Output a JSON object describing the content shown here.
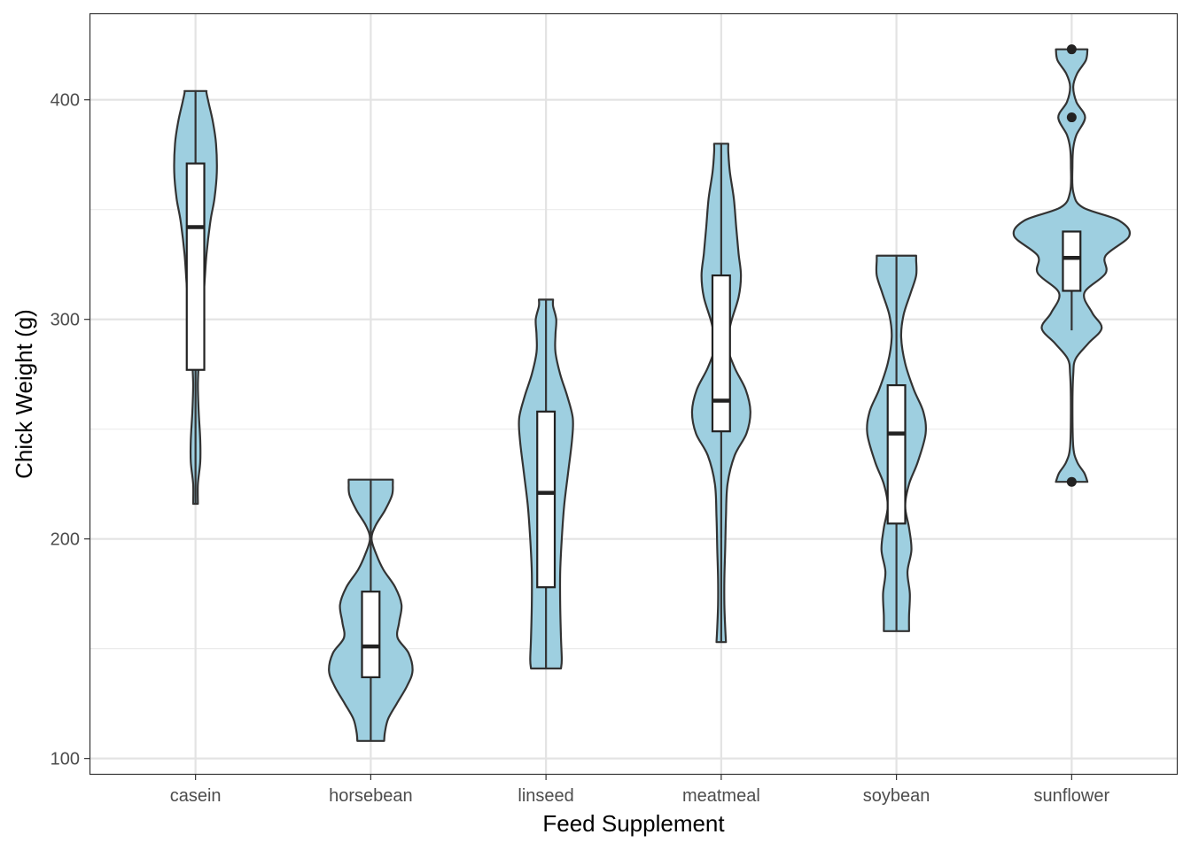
{
  "chart_data": {
    "type": "violin",
    "xlabel": "Feed Supplement",
    "ylabel": "Chick Weight (g)",
    "ylim": [
      93,
      439
    ],
    "yticks": [
      100,
      200,
      300,
      400
    ],
    "y_minor_gridlines": [
      150,
      250,
      350
    ],
    "grid": true,
    "fill_color": "#9ecfe0",
    "outline_color": "#333333",
    "box_fill": "#ffffff",
    "categories": [
      "casein",
      "horsebean",
      "linseed",
      "meatmeal",
      "soybean",
      "sunflower"
    ],
    "groups": [
      {
        "name": "casein",
        "violin": [
          [
            216,
            0.03
          ],
          [
            225,
            0.03
          ],
          [
            235,
            0.06
          ],
          [
            245,
            0.06
          ],
          [
            258,
            0.04
          ],
          [
            270,
            0.03
          ],
          [
            280,
            0.04
          ],
          [
            290,
            0.05
          ],
          [
            300,
            0.07
          ],
          [
            315,
            0.11
          ],
          [
            330,
            0.14
          ],
          [
            345,
            0.19
          ],
          [
            355,
            0.24
          ],
          [
            367,
            0.27
          ],
          [
            380,
            0.26
          ],
          [
            390,
            0.22
          ],
          [
            398,
            0.17
          ],
          [
            403,
            0.14
          ],
          [
            404,
            0.14
          ]
        ],
        "box": {
          "min": 216,
          "q1": 277,
          "median": 342,
          "q3": 371,
          "max": 404
        },
        "outliers": []
      },
      {
        "name": "horsebean",
        "violin": [
          [
            108,
            0.17
          ],
          [
            112,
            0.18
          ],
          [
            118,
            0.22
          ],
          [
            125,
            0.33
          ],
          [
            133,
            0.46
          ],
          [
            140,
            0.53
          ],
          [
            148,
            0.48
          ],
          [
            155,
            0.34
          ],
          [
            162,
            0.36
          ],
          [
            170,
            0.39
          ],
          [
            178,
            0.31
          ],
          [
            186,
            0.16
          ],
          [
            193,
            0.07
          ],
          [
            200,
            0.01
          ],
          [
            206,
            0.06
          ],
          [
            213,
            0.18
          ],
          [
            220,
            0.27
          ],
          [
            225,
            0.28
          ],
          [
            227,
            0.28
          ]
        ],
        "box": {
          "min": 108,
          "q1": 137,
          "median": 151,
          "q3": 176,
          "max": 227
        },
        "outliers": []
      },
      {
        "name": "linseed",
        "violin": [
          [
            141,
            0.19
          ],
          [
            145,
            0.2
          ],
          [
            155,
            0.19
          ],
          [
            170,
            0.18
          ],
          [
            185,
            0.18
          ],
          [
            200,
            0.2
          ],
          [
            215,
            0.23
          ],
          [
            230,
            0.28
          ],
          [
            245,
            0.33
          ],
          [
            255,
            0.34
          ],
          [
            265,
            0.27
          ],
          [
            275,
            0.18
          ],
          [
            285,
            0.12
          ],
          [
            293,
            0.12
          ],
          [
            300,
            0.13
          ],
          [
            306,
            0.09
          ],
          [
            309,
            0.09
          ]
        ],
        "box": {
          "min": 141,
          "q1": 178,
          "median": 221,
          "q3": 258,
          "max": 309
        },
        "outliers": []
      },
      {
        "name": "meatmeal",
        "violin": [
          [
            153,
            0.06
          ],
          [
            160,
            0.05
          ],
          [
            170,
            0.04
          ],
          [
            182,
            0.04
          ],
          [
            195,
            0.05
          ],
          [
            210,
            0.06
          ],
          [
            225,
            0.08
          ],
          [
            238,
            0.17
          ],
          [
            248,
            0.32
          ],
          [
            258,
            0.37
          ],
          [
            268,
            0.31
          ],
          [
            278,
            0.17
          ],
          [
            288,
            0.08
          ],
          [
            298,
            0.12
          ],
          [
            310,
            0.22
          ],
          [
            320,
            0.25
          ],
          [
            330,
            0.22
          ],
          [
            342,
            0.19
          ],
          [
            355,
            0.16
          ],
          [
            367,
            0.11
          ],
          [
            376,
            0.09
          ],
          [
            380,
            0.09
          ]
        ],
        "box": {
          "min": 153,
          "q1": 249,
          "median": 263,
          "q3": 320,
          "max": 380
        },
        "outliers": []
      },
      {
        "name": "soybean",
        "violin": [
          [
            158,
            0.16
          ],
          [
            165,
            0.16
          ],
          [
            175,
            0.17
          ],
          [
            185,
            0.14
          ],
          [
            195,
            0.19
          ],
          [
            205,
            0.16
          ],
          [
            215,
            0.11
          ],
          [
            225,
            0.16
          ],
          [
            235,
            0.27
          ],
          [
            248,
            0.37
          ],
          [
            258,
            0.34
          ],
          [
            268,
            0.22
          ],
          [
            280,
            0.11
          ],
          [
            292,
            0.06
          ],
          [
            302,
            0.09
          ],
          [
            312,
            0.18
          ],
          [
            320,
            0.25
          ],
          [
            327,
            0.25
          ],
          [
            329,
            0.25
          ]
        ],
        "box": {
          "min": 158,
          "q1": 207,
          "median": 248,
          "q3": 270,
          "max": 329
        },
        "outliers": []
      },
      {
        "name": "sunflower",
        "violin": [
          [
            226,
            0.2
          ],
          [
            230,
            0.16
          ],
          [
            235,
            0.07
          ],
          [
            242,
            0.02
          ],
          [
            260,
            0.01
          ],
          [
            275,
            0.02
          ],
          [
            282,
            0.05
          ],
          [
            289,
            0.21
          ],
          [
            296,
            0.38
          ],
          [
            303,
            0.26
          ],
          [
            312,
            0.16
          ],
          [
            321,
            0.43
          ],
          [
            329,
            0.43
          ],
          [
            338,
            0.73
          ],
          [
            345,
            0.6
          ],
          [
            351,
            0.14
          ],
          [
            358,
            0.02
          ],
          [
            370,
            0.01
          ],
          [
            378,
            0.02
          ],
          [
            384,
            0.06
          ],
          [
            392,
            0.17
          ],
          [
            399,
            0.06
          ],
          [
            406,
            0.02
          ],
          [
            412,
            0.07
          ],
          [
            418,
            0.18
          ],
          [
            423,
            0.2
          ]
        ],
        "box": {
          "min": 295,
          "q1": 313,
          "median": 328,
          "q3": 340,
          "max": 340
        },
        "outliers": [
          226,
          392,
          423
        ]
      }
    ]
  }
}
